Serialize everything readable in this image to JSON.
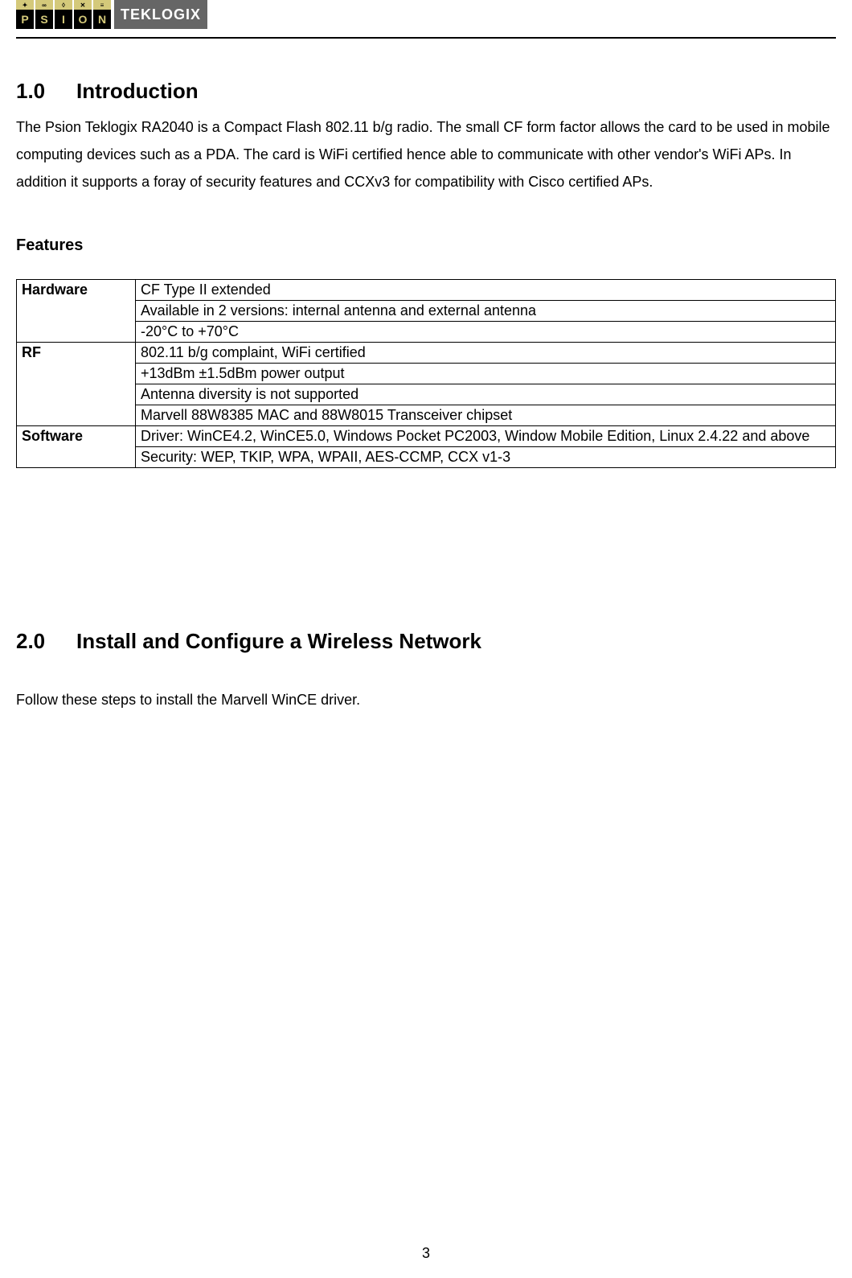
{
  "logo": {
    "letters": [
      "P",
      "S",
      "I",
      "O",
      "N"
    ],
    "brand": "TEKLOGIX"
  },
  "section1": {
    "number": "1.0",
    "title": "Introduction",
    "paragraph": "The Psion Teklogix RA2040 is a Compact Flash 802.11 b/g radio.   The small CF form factor allows the card to be used in mobile computing devices such as a PDA.   The card is WiFi certified hence able to communicate with other vendor's WiFi APs.   In addition it supports a foray of security features and CCXv3 for compatibility with Cisco certified APs."
  },
  "features": {
    "heading": "Features",
    "table": {
      "groups": [
        {
          "label": "Hardware",
          "rows": [
            "CF Type II extended",
            "Available in 2 versions: internal antenna and external antenna",
            "-20°C to +70°C"
          ]
        },
        {
          "label": "RF",
          "rows": [
            "802.11 b/g complaint, WiFi certified",
            "+13dBm ±1.5dBm power output",
            "Antenna diversity is not supported",
            "Marvell 88W8385 MAC and 88W8015 Transceiver chipset"
          ]
        },
        {
          "label": "Software",
          "rows": [
            "Driver: WinCE4.2, WinCE5.0, Windows Pocket PC2003, Window Mobile Edition, Linux 2.4.22 and above",
            "Security: WEP, TKIP, WPA, WPAII, AES-CCMP, CCX v1-3"
          ]
        }
      ]
    }
  },
  "section2": {
    "number": "2.0",
    "title": "Install and Configure a Wireless Network",
    "paragraph": "Follow these steps to install the Marvell WinCE driver."
  },
  "page_number": "3"
}
